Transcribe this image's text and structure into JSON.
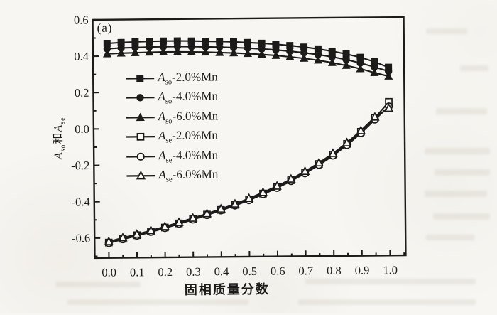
{
  "figure": {
    "panel_label": "(a)",
    "x_axis": {
      "title": "固相质量分数",
      "tick_labels": [
        "0.0",
        "0.1",
        "0.2",
        "0.3",
        "0.4",
        "0.5",
        "0.6",
        "0.7",
        "0.8",
        "0.9",
        "1.0"
      ]
    },
    "y_axis": {
      "title_markup": "A_{so}和A_{se}",
      "tick_labels": [
        "0.6",
        "0.4",
        "0.2",
        "0.0",
        "-0.2",
        "-0.4",
        "-0.6"
      ]
    }
  },
  "legend": {
    "items": [
      {
        "marker": "filled-square",
        "label_markup": "A_{so}-2.0%Mn"
      },
      {
        "marker": "filled-circle",
        "label_markup": "A_{so}-4.0%Mn"
      },
      {
        "marker": "filled-triangle",
        "label_markup": "A_{so}-6.0%Mn"
      },
      {
        "marker": "open-square",
        "label_markup": "A_{se}-2.0%Mn"
      },
      {
        "marker": "open-circle",
        "label_markup": "A_{se}-4.0%Mn"
      },
      {
        "marker": "open-triangle",
        "label_markup": "A_{se}-6.0%Mn"
      }
    ]
  },
  "chart_data": {
    "type": "line",
    "title": "",
    "xlabel": "固相质量分数",
    "ylabel": "Aso和Ase",
    "xlim": [
      0.0,
      1.0
    ],
    "ylim": [
      -0.6,
      0.6
    ],
    "x_major_tick_step": 0.1,
    "y_major_tick_step": 0.2,
    "grid": false,
    "legend_position": "inside upper-left",
    "x": [
      0.0,
      0.05,
      0.1,
      0.15,
      0.2,
      0.25,
      0.3,
      0.35,
      0.4,
      0.45,
      0.5,
      0.55,
      0.6,
      0.65,
      0.7,
      0.75,
      0.8,
      0.85,
      0.9,
      0.95,
      1.0
    ],
    "series": [
      {
        "name": "Aso-2.0%Mn",
        "marker": "filled-square",
        "values": [
          0.47,
          0.474,
          0.477,
          0.479,
          0.48,
          0.48,
          0.479,
          0.477,
          0.475,
          0.472,
          0.468,
          0.463,
          0.457,
          0.449,
          0.44,
          0.429,
          0.416,
          0.4,
          0.381,
          0.356,
          0.325
        ]
      },
      {
        "name": "Aso-4.0%Mn",
        "marker": "filled-circle",
        "values": [
          0.44,
          0.444,
          0.446,
          0.448,
          0.449,
          0.449,
          0.448,
          0.446,
          0.444,
          0.441,
          0.437,
          0.432,
          0.426,
          0.418,
          0.409,
          0.398,
          0.385,
          0.369,
          0.35,
          0.327,
          0.303
        ]
      },
      {
        "name": "Aso-6.0%Mn",
        "marker": "filled-triangle",
        "values": [
          0.412,
          0.415,
          0.417,
          0.419,
          0.42,
          0.42,
          0.419,
          0.417,
          0.414,
          0.411,
          0.407,
          0.402,
          0.395,
          0.387,
          0.378,
          0.367,
          0.353,
          0.337,
          0.318,
          0.296,
          0.276
        ]
      },
      {
        "name": "Ase-2.0%Mn",
        "marker": "open-square",
        "values": [
          -0.625,
          -0.605,
          -0.586,
          -0.566,
          -0.545,
          -0.523,
          -0.5,
          -0.476,
          -0.451,
          -0.424,
          -0.395,
          -0.363,
          -0.329,
          -0.291,
          -0.249,
          -0.203,
          -0.152,
          -0.094,
          -0.028,
          0.047,
          0.135
        ]
      },
      {
        "name": "Ase-4.0%Mn",
        "marker": "open-circle",
        "values": [
          -0.628,
          -0.608,
          -0.589,
          -0.569,
          -0.548,
          -0.526,
          -0.503,
          -0.479,
          -0.454,
          -0.428,
          -0.399,
          -0.367,
          -0.333,
          -0.296,
          -0.254,
          -0.209,
          -0.158,
          -0.101,
          -0.036,
          0.038,
          0.11
        ]
      },
      {
        "name": "Ase-6.0%Mn",
        "marker": "open-triangle",
        "values": [
          -0.62,
          -0.6,
          -0.581,
          -0.561,
          -0.54,
          -0.518,
          -0.495,
          -0.471,
          -0.446,
          -0.419,
          -0.389,
          -0.357,
          -0.323,
          -0.285,
          -0.243,
          -0.197,
          -0.146,
          -0.088,
          -0.022,
          0.052,
          0.1
        ]
      }
    ]
  },
  "colors": {
    "ink": "#1d1b19",
    "paper": "#fbfaf7"
  }
}
